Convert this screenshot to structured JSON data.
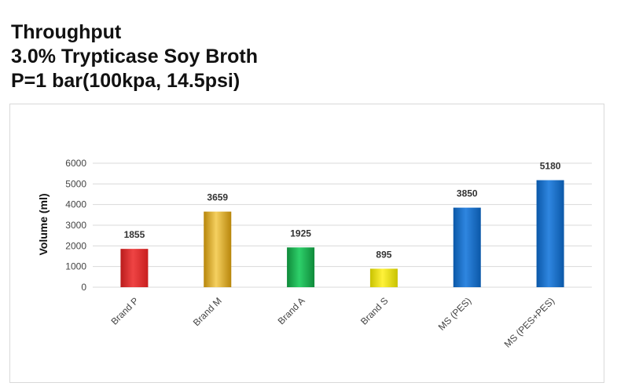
{
  "chart_data": {
    "type": "bar",
    "title": [
      "Throughput",
      "3.0% Trypticase Soy Broth",
      "P=1 bar(100kpa, 14.5psi)"
    ],
    "ylabel": "Volume  (ml)",
    "xlabel": "",
    "ylim": [
      0,
      6000
    ],
    "yticks": [
      "0",
      "1000",
      "2000",
      "3000",
      "4000",
      "5000",
      "6000"
    ],
    "ytick_values": [
      0,
      1000,
      2000,
      3000,
      4000,
      5000,
      6000
    ],
    "grid": true,
    "legend": "none",
    "categories": [
      "Brand P",
      "Brand M",
      "Brand A",
      "Brand S",
      "MS  (PES)",
      "MS  (PES+PES)"
    ],
    "values": [
      1855,
      3659,
      1925,
      895,
      3850,
      5180
    ],
    "data_labels": [
      "1855",
      "3659",
      "1925",
      "895",
      "3850",
      "5180"
    ],
    "colors": [
      [
        "#b91c1c",
        "#ef4444",
        "#c81e1e"
      ],
      [
        "#b7860b",
        "#f5d060",
        "#b8860b"
      ],
      [
        "#0f8a3a",
        "#2ed06a",
        "#0f8a3a"
      ],
      [
        "#c8c200",
        "#fff23a",
        "#c8c200"
      ],
      [
        "#0b58a8",
        "#2f86e0",
        "#0b58a8"
      ],
      [
        "#0b58a8",
        "#2f86e0",
        "#0b58a8"
      ]
    ]
  }
}
